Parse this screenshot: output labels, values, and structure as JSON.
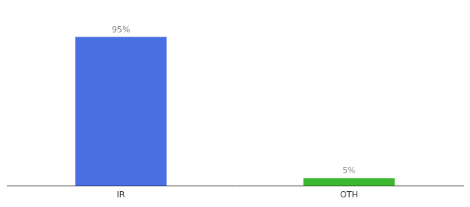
{
  "chart_data": {
    "type": "bar",
    "categories": [
      "IR",
      "OTH"
    ],
    "values": [
      95,
      5
    ],
    "value_labels": [
      "95%",
      "5%"
    ],
    "data_labels": true,
    "colors": [
      "#4A6FE3",
      "#3CB830"
    ],
    "ylim": [
      0,
      108
    ],
    "grid": false,
    "tick_labels": "x"
  }
}
